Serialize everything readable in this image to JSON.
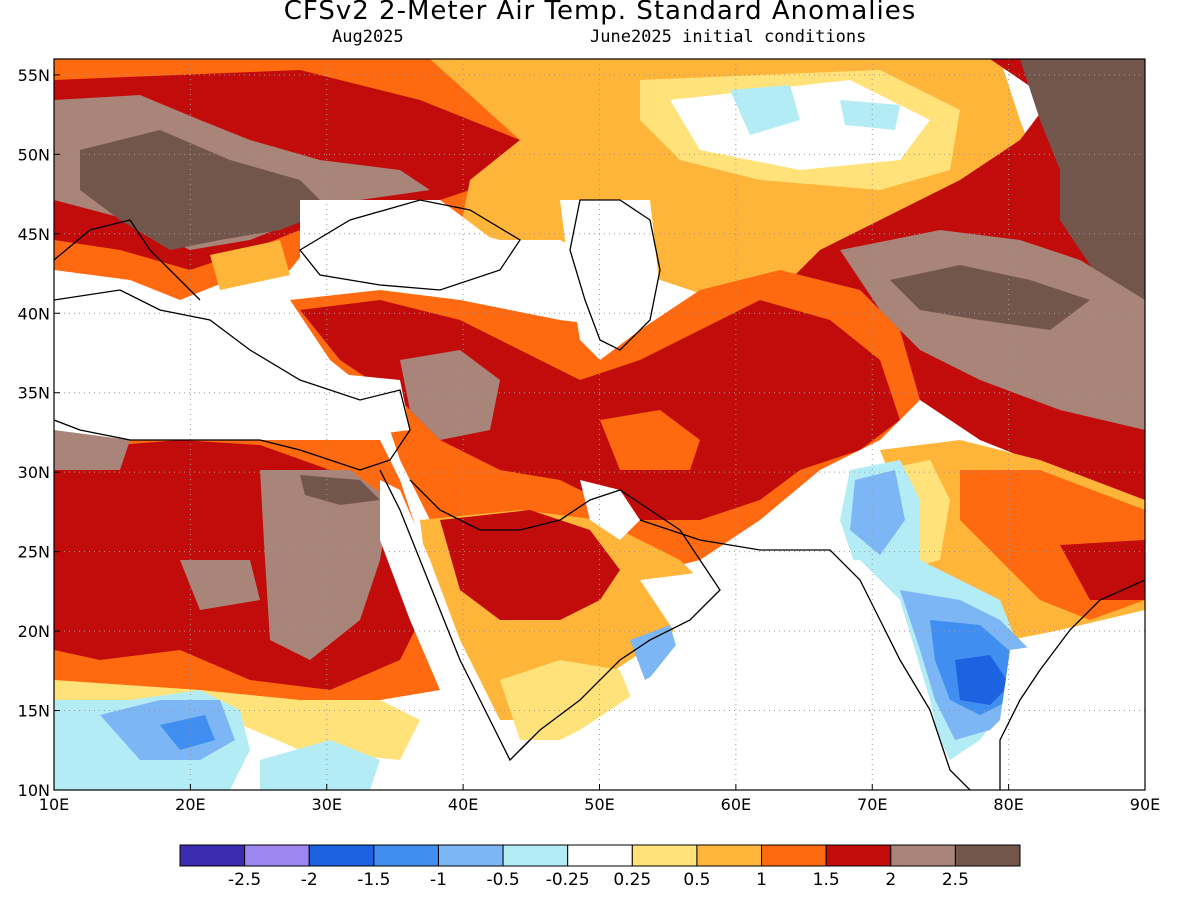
{
  "header": {
    "title": "CFSv2 2-Meter Air Temp. Standard Anomalies",
    "valid_month": "Aug2025",
    "init": "June2025 initial conditions"
  },
  "axes": {
    "x_ticks": [
      "10E",
      "20E",
      "30E",
      "40E",
      "50E",
      "60E",
      "70E",
      "80E",
      "90E"
    ],
    "x_values": [
      10,
      20,
      30,
      40,
      50,
      60,
      70,
      80,
      90
    ],
    "y_ticks": [
      "10N",
      "15N",
      "20N",
      "25N",
      "30N",
      "35N",
      "40N",
      "45N",
      "50N",
      "55N"
    ],
    "y_values": [
      10,
      15,
      20,
      25,
      30,
      35,
      40,
      45,
      50,
      55
    ],
    "lon_range": [
      10,
      90
    ],
    "lat_range": [
      10,
      56
    ],
    "grid": "dotted"
  },
  "colorbar": {
    "colors": [
      "#3a2bb0",
      "#9e86f0",
      "#1d62e0",
      "#3f8ef0",
      "#7cb6f5",
      "#b4ecf5",
      "#ffffff",
      "#ffe37a",
      "#ffb43a",
      "#ff6a10",
      "#c20c0c",
      "#a98478",
      "#73564b"
    ],
    "labels": [
      "-2.5",
      "-2",
      "-1.5",
      "-1",
      "-0.5",
      "-0.25",
      "0.25",
      "0.5",
      "1",
      "1.5",
      "2",
      "2.5"
    ]
  },
  "map": {
    "background": "#ffffff",
    "regions": [
      {
        "level": 10,
        "color": "#c20c0c"
      },
      {
        "level": 11,
        "color": "#a98478"
      },
      {
        "level": 12,
        "color": "#73564b"
      },
      {
        "level": 9,
        "color": "#ff6a10"
      },
      {
        "level": 8,
        "color": "#ffb43a"
      },
      {
        "level": 7,
        "color": "#ffe37a"
      },
      {
        "level": 5,
        "color": "#b4ecf5"
      },
      {
        "level": 4,
        "color": "#7cb6f5"
      },
      {
        "level": 3,
        "color": "#3f8ef0"
      },
      {
        "level": 2,
        "color": "#1d62e0"
      }
    ]
  }
}
